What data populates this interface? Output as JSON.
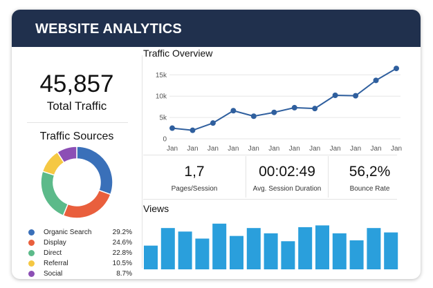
{
  "header": {
    "title": "WEBSITE ANALYTICS"
  },
  "total": {
    "value": "45,857",
    "label": "Total Traffic"
  },
  "sources": {
    "title": "Traffic Sources",
    "items": [
      {
        "label": "Organic Search",
        "percent": "29.2%",
        "value": 29.2,
        "color": "#3a70b9"
      },
      {
        "label": "Display",
        "percent": "24.6%",
        "value": 24.6,
        "color": "#e95f3d"
      },
      {
        "label": "Direct",
        "percent": "22.8%",
        "value": 22.8,
        "color": "#5cba8a"
      },
      {
        "label": "Referral",
        "percent": "10.5%",
        "value": 10.5,
        "color": "#f5c843"
      },
      {
        "label": "Social",
        "percent": "8.7%",
        "value": 8.7,
        "color": "#8c4fb5"
      }
    ]
  },
  "chart_data": [
    {
      "type": "line",
      "title": "Traffic Overview",
      "x": [
        "Jan",
        "Jan",
        "Jan",
        "Jan",
        "Jan",
        "Jan",
        "Jan",
        "Jan",
        "Jan",
        "Jan",
        "Jan",
        "Jan"
      ],
      "series": [
        {
          "values": [
            2500,
            2000,
            3700,
            6600,
            5300,
            6200,
            7300,
            7100,
            10200,
            10100,
            13700,
            16500
          ]
        }
      ],
      "yticks": [
        0,
        5000,
        10000,
        15000
      ],
      "ytick_labels": [
        "0",
        "5k",
        "10k",
        "15k"
      ],
      "ylim": [
        0,
        17000
      ],
      "grid": true,
      "color": "#2f5f9e"
    },
    {
      "type": "bar",
      "title": "Views",
      "values": [
        27,
        47,
        43,
        35,
        52,
        38,
        47,
        41,
        32,
        48,
        50,
        41,
        33,
        47,
        42
      ],
      "ylim": [
        0,
        55
      ],
      "color": "#2a9fdc"
    }
  ],
  "metrics": [
    {
      "value": "1,7",
      "label": "Pages/Session"
    },
    {
      "value": "00:02:49",
      "label": "Avg. Session Duration"
    },
    {
      "value": "56,2%",
      "label": "Bounce Rate"
    }
  ]
}
